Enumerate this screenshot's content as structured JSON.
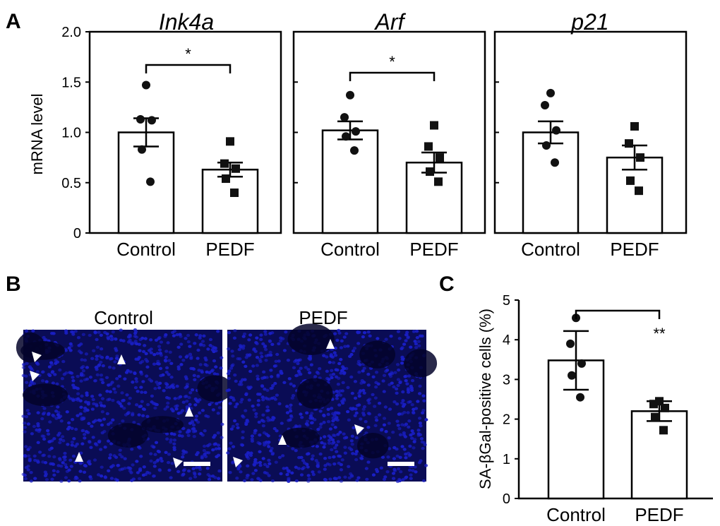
{
  "panel_letters": {
    "a": "A",
    "b": "B",
    "c": "C"
  },
  "micrographs": {
    "control_label": "Control",
    "pedf_label": "PEDF",
    "background_color": "#1a1fc8",
    "marker_color": "#ffffff"
  },
  "chart_data": [
    {
      "type": "bar",
      "title": "Ink4a",
      "ylabel": "mRNA level",
      "ylim": [
        0,
        2.0
      ],
      "yticks": [
        "0",
        "0.5",
        "1.0",
        "1.5",
        "2.0"
      ],
      "categories": [
        "Control",
        "PEDF"
      ],
      "values": [
        1.0,
        0.63
      ],
      "errors": [
        0.14,
        0.07
      ],
      "points": [
        [
          1.47,
          1.13,
          1.12,
          0.83,
          0.51
        ],
        [
          0.91,
          0.69,
          0.64,
          0.54,
          0.4
        ]
      ],
      "significance": "*"
    },
    {
      "type": "bar",
      "title": "Arf",
      "ylabel": "",
      "ylim": [
        0,
        2.0
      ],
      "yticks": [
        "",
        "",
        "",
        "",
        ""
      ],
      "categories": [
        "Control",
        "PEDF"
      ],
      "values": [
        1.02,
        0.7
      ],
      "errors": [
        0.09,
        0.1
      ],
      "points": [
        [
          1.37,
          1.15,
          1.01,
          0.96,
          0.82
        ],
        [
          1.07,
          0.86,
          0.75,
          0.61,
          0.51
        ]
      ],
      "significance": "*"
    },
    {
      "type": "bar",
      "title": "p21",
      "ylabel": "",
      "ylim": [
        0,
        2.0
      ],
      "yticks": [
        "",
        "",
        "",
        "",
        ""
      ],
      "categories": [
        "Control",
        "PEDF"
      ],
      "values": [
        1.0,
        0.75
      ],
      "errors": [
        0.11,
        0.12
      ],
      "points": [
        [
          1.39,
          1.27,
          1.02,
          0.87,
          0.7
        ],
        [
          1.06,
          0.89,
          0.75,
          0.52,
          0.42
        ]
      ],
      "significance": ""
    },
    {
      "type": "bar",
      "title": "",
      "ylabel": "SA-βGal-positive cells (%)",
      "ylim": [
        0,
        5
      ],
      "yticks": [
        "0",
        "1",
        "2",
        "3",
        "4",
        "5"
      ],
      "categories": [
        "Control",
        "PEDF"
      ],
      "values": [
        3.48,
        2.2
      ],
      "errors": [
        0.74,
        0.25
      ],
      "points": [
        [
          4.55,
          3.9,
          3.4,
          3.1,
          2.55
        ],
        [
          2.45,
          2.38,
          2.28,
          2.05,
          1.72
        ]
      ],
      "significance": "**"
    }
  ]
}
